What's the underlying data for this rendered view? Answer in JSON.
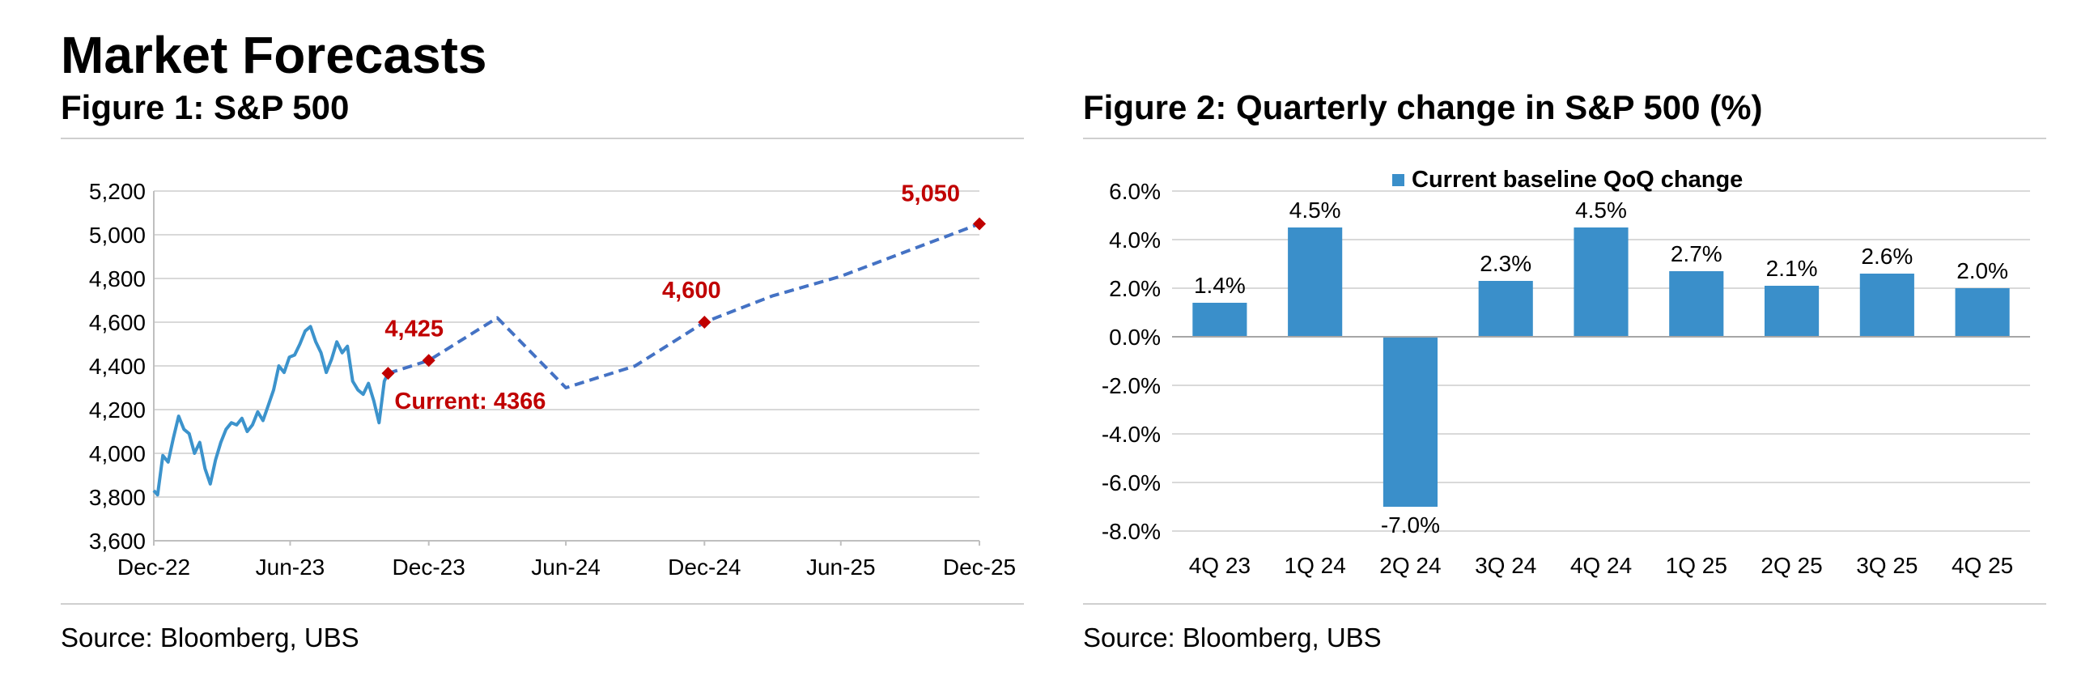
{
  "page": {
    "title": "Market Forecasts"
  },
  "figure1": {
    "title": "Figure 1: S&P 500",
    "source": "Source: Bloomberg, UBS"
  },
  "figure2": {
    "title": "Figure 2: Quarterly change in S&P 500 (%)",
    "source": "Source: Bloomberg, UBS"
  },
  "chart_data": [
    {
      "type": "line",
      "title": "Figure 1: S&P 500",
      "xlabel": "",
      "ylabel": "",
      "x_tick_labels": [
        "Dec-22",
        "Jun-23",
        "Dec-23",
        "Jun-24",
        "Dec-24",
        "Jun-25",
        "Dec-25"
      ],
      "x_tick_dates": [
        "2022-12-31",
        "2023-06-30",
        "2023-12-31",
        "2024-06-30",
        "2024-12-31",
        "2025-06-30",
        "2025-12-31"
      ],
      "xlim": [
        "2022-12-31",
        "2025-12-31"
      ],
      "ylim": [
        3600,
        5200
      ],
      "y_ticks": [
        3600,
        3800,
        4000,
        4200,
        4400,
        4600,
        4800,
        5000,
        5200
      ],
      "y_tick_labels": [
        "3,600",
        "3,800",
        "4,000",
        "4,200",
        "4,400",
        "4,600",
        "4,800",
        "5,000",
        "5,200"
      ],
      "grid": true,
      "colors": {
        "history": "#3c93cc",
        "forecast": "#4472c4",
        "marker": "#c00000",
        "annotation": "#c00000"
      },
      "series": [
        {
          "style": "solid",
          "x": [
            "2022-12-31",
            "2023-01-05",
            "2023-01-12",
            "2023-01-19",
            "2023-01-26",
            "2023-02-02",
            "2023-02-09",
            "2023-02-16",
            "2023-02-23",
            "2023-03-02",
            "2023-03-09",
            "2023-03-16",
            "2023-03-23",
            "2023-03-30",
            "2023-04-06",
            "2023-04-13",
            "2023-04-20",
            "2023-04-27",
            "2023-05-04",
            "2023-05-11",
            "2023-05-18",
            "2023-05-25",
            "2023-06-01",
            "2023-06-08",
            "2023-06-15",
            "2023-06-22",
            "2023-06-29",
            "2023-07-06",
            "2023-07-13",
            "2023-07-20",
            "2023-07-27",
            "2023-08-03",
            "2023-08-10",
            "2023-08-17",
            "2023-08-24",
            "2023-08-31",
            "2023-09-07",
            "2023-09-14",
            "2023-09-21",
            "2023-09-28",
            "2023-10-05",
            "2023-10-12",
            "2023-10-19",
            "2023-10-26",
            "2023-11-02",
            "2023-11-07"
          ],
          "y": [
            3830,
            3810,
            3990,
            3960,
            4070,
            4170,
            4110,
            4090,
            4000,
            4050,
            3930,
            3860,
            3970,
            4050,
            4110,
            4140,
            4130,
            4160,
            4100,
            4130,
            4190,
            4150,
            4220,
            4290,
            4400,
            4370,
            4440,
            4450,
            4500,
            4560,
            4580,
            4510,
            4460,
            4370,
            4430,
            4510,
            4460,
            4490,
            4330,
            4290,
            4270,
            4320,
            4240,
            4140,
            4330,
            4366
          ]
        },
        {
          "style": "dashed",
          "x": [
            "2023-11-07",
            "2023-12-31",
            "2024-03-31",
            "2024-06-30",
            "2024-09-30",
            "2024-12-31",
            "2025-03-31",
            "2025-06-30",
            "2025-09-30",
            "2025-12-31"
          ],
          "y": [
            4366,
            4425,
            4620,
            4300,
            4400,
            4600,
            4720,
            4810,
            4930,
            5050
          ]
        }
      ],
      "markers": [
        {
          "x": "2023-11-07",
          "y": 4366,
          "label": "Current: 4366"
        },
        {
          "x": "2023-12-31",
          "y": 4425,
          "label": "4,425"
        },
        {
          "x": "2024-12-31",
          "y": 4600,
          "label": "4,600"
        },
        {
          "x": "2025-12-31",
          "y": 5050,
          "label": "5,050"
        }
      ]
    },
    {
      "type": "bar",
      "title": "Figure 2: Quarterly change in S&P 500 (%)",
      "xlabel": "",
      "ylabel": "",
      "categories": [
        "4Q 23",
        "1Q 24",
        "2Q 24",
        "3Q 24",
        "4Q 24",
        "1Q 25",
        "2Q 25",
        "3Q 25",
        "4Q 25"
      ],
      "series": [
        {
          "name": "Current baseline QoQ change",
          "values": [
            1.4,
            4.5,
            -7.0,
            2.3,
            4.5,
            2.7,
            2.1,
            2.6,
            2.0
          ]
        }
      ],
      "data_labels": [
        "1.4%",
        "4.5%",
        "-7.0%",
        "2.3%",
        "4.5%",
        "2.7%",
        "2.1%",
        "2.6%",
        "2.0%"
      ],
      "ylim": [
        -8,
        6
      ],
      "y_ticks": [
        -8,
        -6,
        -4,
        -2,
        0,
        2,
        4,
        6
      ],
      "y_tick_labels": [
        "-8.0%",
        "-6.0%",
        "-4.0%",
        "-2.0%",
        "0.0%",
        "2.0%",
        "4.0%",
        "6.0%"
      ],
      "grid": true,
      "legend": "top-center",
      "colors": {
        "bar": "#3a8fca"
      }
    }
  ]
}
